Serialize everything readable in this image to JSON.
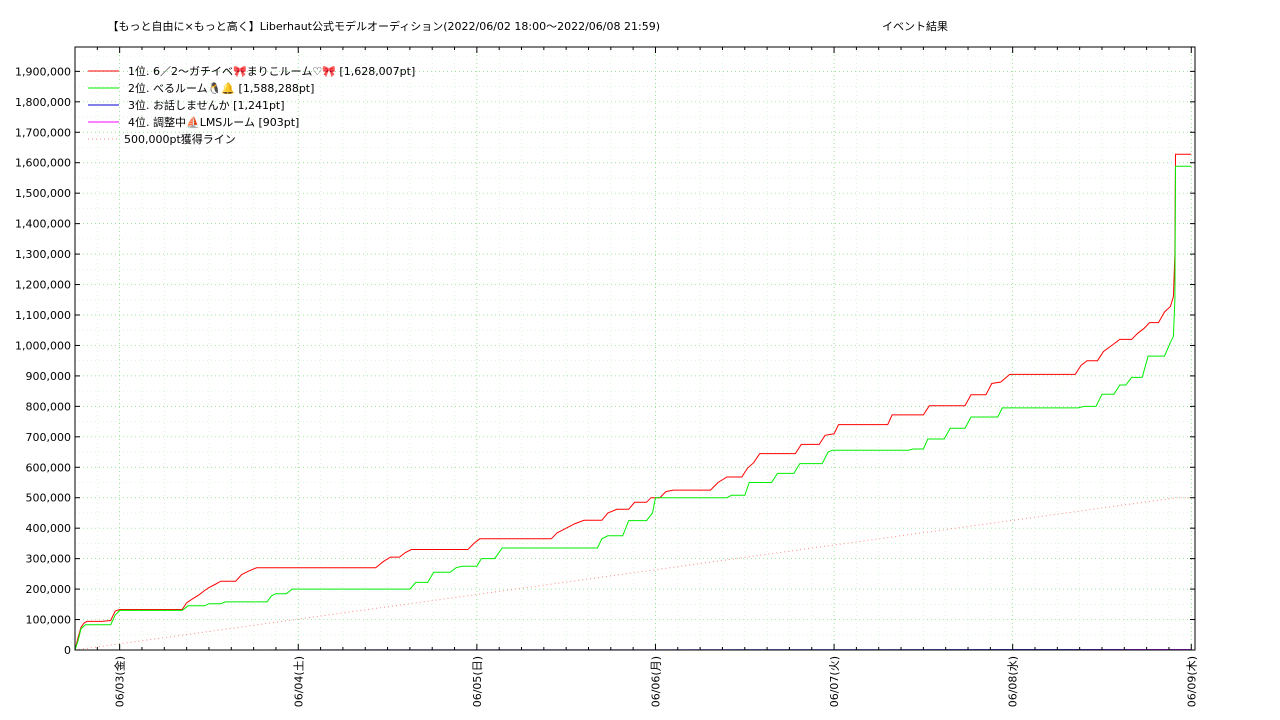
{
  "chart_data": {
    "type": "line",
    "title": "【もっと自由に×もっと高く】Liberhaut公式モデルオーディション(2022/06/02 18:00～2022/06/08 21:59)",
    "subtitle": "イベント結果",
    "xlabel": "",
    "ylabel": "",
    "xlim": [
      "2022-06-02 18:00",
      "2022-06-09 00:30"
    ],
    "ylim": [
      0,
      1980000
    ],
    "y_ticks": [
      0,
      100000,
      200000,
      300000,
      400000,
      500000,
      600000,
      700000,
      800000,
      900000,
      1000000,
      1100000,
      1200000,
      1300000,
      1400000,
      1500000,
      1600000,
      1700000,
      1800000,
      1900000
    ],
    "y_tick_labels": [
      "0",
      "100,000",
      "200,000",
      "300,000",
      "400,000",
      "500,000",
      "600,000",
      "700,000",
      "800,000",
      "900,000",
      "1,000,000",
      "1,100,000",
      "1,200,000",
      "1,300,000",
      "1,400,000",
      "1,500,000",
      "1,600,000",
      "1,700,000",
      "1,800,000",
      "1,900,000"
    ],
    "x_ticks": [
      "2022-06-03 00:00",
      "2022-06-04 00:00",
      "2022-06-05 00:00",
      "2022-06-06 00:00",
      "2022-06-07 00:00",
      "2022-06-08 00:00",
      "2022-06-09 00:00"
    ],
    "x_tick_labels": [
      "06/03(金)",
      "06/04(土)",
      "06/05(日)",
      "06/06(月)",
      "06/07(火)",
      "06/08(水)",
      "06/09(木)"
    ],
    "grid": true,
    "legend_position": "top-left",
    "series": [
      {
        "name": "1位. 6／2〜ガチイベ🎀まりこルーム♡🎀 [1,628,007pt]",
        "color": "#ff0000",
        "style": "solid",
        "points": [
          [
            "2022-06-02 18:00",
            0
          ],
          [
            "2022-06-02 18:24",
            40000
          ],
          [
            "2022-06-02 18:48",
            75000
          ],
          [
            "2022-06-02 19:12",
            88000
          ],
          [
            "2022-06-02 19:36",
            94000
          ],
          [
            "2022-06-02 21:36",
            94000
          ],
          [
            "2022-06-02 22:48",
            97000
          ],
          [
            "2022-06-02 23:24",
            128000
          ],
          [
            "2022-06-03 00:00",
            133000
          ],
          [
            "2022-06-03 08:24",
            133000
          ],
          [
            "2022-06-03 09:00",
            155000
          ],
          [
            "2022-06-03 09:48",
            168000
          ],
          [
            "2022-06-03 10:36",
            180000
          ],
          [
            "2022-06-03 11:24",
            195000
          ],
          [
            "2022-06-03 12:00",
            205000
          ],
          [
            "2022-06-03 12:48",
            215000
          ],
          [
            "2022-06-03 13:36",
            226000
          ],
          [
            "2022-06-03 15:36",
            226000
          ],
          [
            "2022-06-03 16:24",
            248000
          ],
          [
            "2022-06-03 17:24",
            260000
          ],
          [
            "2022-06-03 18:24",
            270000
          ],
          [
            "2022-06-04 10:24",
            270000
          ],
          [
            "2022-06-04 11:24",
            290000
          ],
          [
            "2022-06-04 12:24",
            305000
          ],
          [
            "2022-06-04 13:36",
            305000
          ],
          [
            "2022-06-04 14:24",
            320000
          ],
          [
            "2022-06-04 15:12",
            330000
          ],
          [
            "2022-06-04 22:48",
            330000
          ],
          [
            "2022-06-04 23:36",
            350000
          ],
          [
            "2022-06-05 00:24",
            365000
          ],
          [
            "2022-06-05 10:00",
            365000
          ],
          [
            "2022-06-05 10:48",
            385000
          ],
          [
            "2022-06-05 12:00",
            400000
          ],
          [
            "2022-06-05 13:12",
            415000
          ],
          [
            "2022-06-05 14:24",
            426000
          ],
          [
            "2022-06-05 16:48",
            426000
          ],
          [
            "2022-06-05 17:36",
            450000
          ],
          [
            "2022-06-05 18:48",
            462000
          ],
          [
            "2022-06-05 20:24",
            462000
          ],
          [
            "2022-06-05 21:12",
            485000
          ],
          [
            "2022-06-05 22:48",
            485000
          ],
          [
            "2022-06-05 23:24",
            500000
          ],
          [
            "2022-06-06 00:36",
            500000
          ],
          [
            "2022-06-06 01:24",
            520000
          ],
          [
            "2022-06-06 02:24",
            525000
          ],
          [
            "2022-06-06 07:24",
            525000
          ],
          [
            "2022-06-06 08:24",
            550000
          ],
          [
            "2022-06-06 09:36",
            568000
          ],
          [
            "2022-06-06 11:36",
            568000
          ],
          [
            "2022-06-06 12:24",
            598000
          ],
          [
            "2022-06-06 13:12",
            615000
          ],
          [
            "2022-06-06 14:00",
            645000
          ],
          [
            "2022-06-06 18:48",
            645000
          ],
          [
            "2022-06-06 19:36",
            675000
          ],
          [
            "2022-06-06 22:00",
            675000
          ],
          [
            "2022-06-06 22:48",
            705000
          ],
          [
            "2022-06-07 00:00",
            710000
          ],
          [
            "2022-06-07 00:36",
            740000
          ],
          [
            "2022-06-07 07:12",
            740000
          ],
          [
            "2022-06-07 07:48",
            772000
          ],
          [
            "2022-06-07 12:00",
            772000
          ],
          [
            "2022-06-07 12:48",
            802000
          ],
          [
            "2022-06-07 17:36",
            802000
          ],
          [
            "2022-06-07 18:24",
            838000
          ],
          [
            "2022-06-07 20:24",
            838000
          ],
          [
            "2022-06-07 21:12",
            875000
          ],
          [
            "2022-06-07 22:24",
            880000
          ],
          [
            "2022-06-07 23:36",
            905000
          ],
          [
            "2022-06-08 08:24",
            905000
          ],
          [
            "2022-06-08 09:12",
            935000
          ],
          [
            "2022-06-08 10:00",
            950000
          ],
          [
            "2022-06-08 11:24",
            950000
          ],
          [
            "2022-06-08 12:12",
            980000
          ],
          [
            "2022-06-08 13:36",
            1005000
          ],
          [
            "2022-06-08 14:24",
            1020000
          ],
          [
            "2022-06-08 16:00",
            1020000
          ],
          [
            "2022-06-08 16:48",
            1040000
          ],
          [
            "2022-06-08 17:36",
            1055000
          ],
          [
            "2022-06-08 18:24",
            1075000
          ],
          [
            "2022-06-08 19:36",
            1075000
          ],
          [
            "2022-06-08 20:24",
            1110000
          ],
          [
            "2022-06-08 21:12",
            1128000
          ],
          [
            "2022-06-08 21:36",
            1160000
          ],
          [
            "2022-06-08 21:48",
            1300000
          ],
          [
            "2022-06-08 21:53",
            1628007
          ],
          [
            "2022-06-08 23:59",
            1628007
          ]
        ]
      },
      {
        "name": "2位. べるルーム🐧🔔 [1,588,288pt]",
        "color": "#00ee00",
        "style": "solid",
        "points": [
          [
            "2022-06-02 18:00",
            0
          ],
          [
            "2022-06-02 18:24",
            30000
          ],
          [
            "2022-06-02 18:48",
            70000
          ],
          [
            "2022-06-02 19:24",
            83000
          ],
          [
            "2022-06-02 22:48",
            83000
          ],
          [
            "2022-06-02 23:24",
            115000
          ],
          [
            "2022-06-03 00:00",
            130000
          ],
          [
            "2022-06-03 08:24",
            130000
          ],
          [
            "2022-06-03 09:12",
            145000
          ],
          [
            "2022-06-03 11:24",
            145000
          ],
          [
            "2022-06-03 12:00",
            152000
          ],
          [
            "2022-06-03 13:36",
            152000
          ],
          [
            "2022-06-03 14:12",
            158000
          ],
          [
            "2022-06-03 19:48",
            158000
          ],
          [
            "2022-06-03 20:24",
            178000
          ],
          [
            "2022-06-03 21:00",
            185000
          ],
          [
            "2022-06-03 22:24",
            185000
          ],
          [
            "2022-06-03 23:12",
            200000
          ],
          [
            "2022-06-04 15:00",
            200000
          ],
          [
            "2022-06-04 15:48",
            222000
          ],
          [
            "2022-06-04 17:24",
            222000
          ],
          [
            "2022-06-04 18:12",
            255000
          ],
          [
            "2022-06-04 20:24",
            255000
          ],
          [
            "2022-06-04 21:12",
            270000
          ],
          [
            "2022-06-04 22:00",
            275000
          ],
          [
            "2022-06-05 00:00",
            275000
          ],
          [
            "2022-06-05 00:36",
            300000
          ],
          [
            "2022-06-05 02:24",
            300000
          ],
          [
            "2022-06-05 03:24",
            335000
          ],
          [
            "2022-06-05 16:12",
            335000
          ],
          [
            "2022-06-05 16:48",
            365000
          ],
          [
            "2022-06-05 17:36",
            375000
          ],
          [
            "2022-06-05 19:36",
            375000
          ],
          [
            "2022-06-05 20:24",
            425000
          ],
          [
            "2022-06-05 22:48",
            425000
          ],
          [
            "2022-06-05 23:36",
            450000
          ],
          [
            "2022-06-06 00:00",
            500000
          ],
          [
            "2022-06-06 09:36",
            500000
          ],
          [
            "2022-06-06 10:12",
            508000
          ],
          [
            "2022-06-06 12:00",
            508000
          ],
          [
            "2022-06-06 12:36",
            550000
          ],
          [
            "2022-06-06 15:36",
            550000
          ],
          [
            "2022-06-06 16:24",
            580000
          ],
          [
            "2022-06-06 18:36",
            580000
          ],
          [
            "2022-06-06 19:24",
            612000
          ],
          [
            "2022-06-06 22:24",
            612000
          ],
          [
            "2022-06-06 23:12",
            650000
          ],
          [
            "2022-06-06 23:48",
            656000
          ],
          [
            "2022-06-07 10:00",
            656000
          ],
          [
            "2022-06-07 10:36",
            660000
          ],
          [
            "2022-06-07 12:00",
            660000
          ],
          [
            "2022-06-07 12:36",
            693000
          ],
          [
            "2022-06-07 14:48",
            693000
          ],
          [
            "2022-06-07 15:36",
            728000
          ],
          [
            "2022-06-07 17:36",
            728000
          ],
          [
            "2022-06-07 18:24",
            765000
          ],
          [
            "2022-06-07 22:00",
            765000
          ],
          [
            "2022-06-07 22:36",
            795000
          ],
          [
            "2022-06-08 08:48",
            795000
          ],
          [
            "2022-06-08 09:36",
            800000
          ],
          [
            "2022-06-08 11:12",
            800000
          ],
          [
            "2022-06-08 12:00",
            840000
          ],
          [
            "2022-06-08 13:36",
            840000
          ],
          [
            "2022-06-08 14:24",
            870000
          ],
          [
            "2022-06-08 15:12",
            870000
          ],
          [
            "2022-06-08 16:00",
            895000
          ],
          [
            "2022-06-08 17:24",
            895000
          ],
          [
            "2022-06-08 18:12",
            965000
          ],
          [
            "2022-06-08 20:24",
            965000
          ],
          [
            "2022-06-08 21:12",
            1010000
          ],
          [
            "2022-06-08 21:36",
            1030000
          ],
          [
            "2022-06-08 21:48",
            1150000
          ],
          [
            "2022-06-08 21:53",
            1588288
          ],
          [
            "2022-06-08 23:59",
            1588288
          ]
        ]
      },
      {
        "name": "3位. お話しませんか [1,241pt]",
        "color": "#0000cc",
        "style": "solid",
        "points": [
          [
            "2022-06-03 15:00",
            0
          ],
          [
            "2022-06-08 21:59",
            1241
          ],
          [
            "2022-06-08 23:59",
            1241
          ]
        ]
      },
      {
        "name": "4位. 調整中⛵LMSルーム [903pt]",
        "color": "#ff00ff",
        "style": "solid",
        "points": [
          [
            "2022-06-08 07:00",
            0
          ],
          [
            "2022-06-08 21:59",
            903
          ],
          [
            "2022-06-08 23:59",
            903
          ]
        ]
      },
      {
        "name": "500,000pt獲得ライン",
        "color": "#ff8888",
        "style": "dotted",
        "points": [
          [
            "2022-06-02 18:00",
            0
          ],
          [
            "2022-06-08 21:59",
            500000
          ],
          [
            "2022-06-08 23:59",
            500000
          ]
        ]
      }
    ]
  }
}
